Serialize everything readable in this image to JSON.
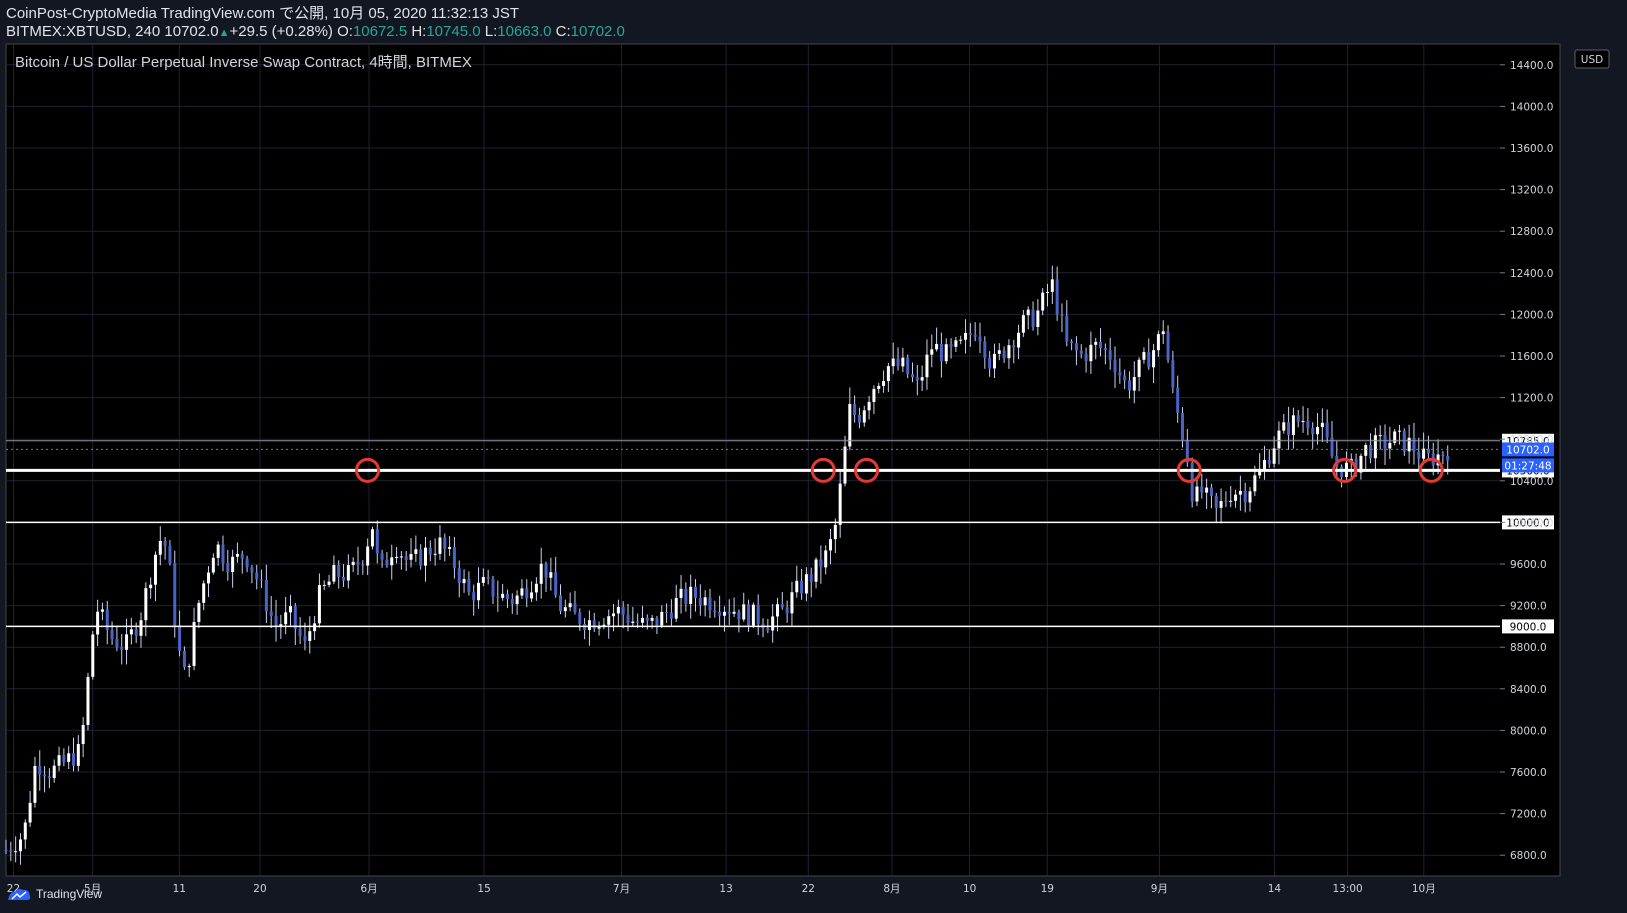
{
  "header": {
    "publish_line": "CoinPost-CryptoMedia TradingView.com で公開, 10月 05, 2020 11:32:13 JST",
    "symbol": "BITMEX:XBTUSD, 240",
    "last": "10702.0",
    "change": "+29.5 (+0.28%)",
    "o_label": "O:",
    "o": "10672.5",
    "h_label": "H:",
    "h": "10745.0",
    "l_label": "L:",
    "l": "10663.0",
    "c_label": "C:",
    "c": "10702.0"
  },
  "footer": {
    "brand": "TradingView"
  },
  "colors": {
    "background": "#000000",
    "grid": "#2a2e3f",
    "candle": "#ffffff",
    "accent": "#2962ff",
    "circle": "#e53935"
  },
  "chart_data": {
    "type": "candlestick",
    "title": "Bitcoin / US Dollar Perpetual Inverse Swap Contract, 4時間, BITMEX",
    "currency_label": "USD",
    "ylim": [
      6600,
      14600
    ],
    "y_ticks": [
      6800,
      7200,
      7600,
      8000,
      8400,
      8800,
      9200,
      9600,
      10000,
      10400,
      10800,
      11200,
      11600,
      12000,
      12400,
      12800,
      13200,
      13600,
      14000,
      14400
    ],
    "y_tick_labels": [
      "6800.0",
      "7200.0",
      "7600.0",
      "8000.0",
      "8400.0",
      "8800.0",
      "9200.0",
      "9600.0",
      "10000.0",
      "10400.0",
      "10800.0",
      "11200.0",
      "11600.0",
      "12000.0",
      "12400.0",
      "12800.0",
      "13200.0",
      "13600.0",
      "14000.0",
      "14400.0"
    ],
    "x_labels": [
      "22",
      "5月",
      "11",
      "20",
      "6月",
      "15",
      "7月",
      "13",
      "22",
      "8月",
      "10",
      "19",
      "9月",
      "14",
      "13:00",
      "10月"
    ],
    "x_label_pos": [
      0.005,
      0.058,
      0.116,
      0.17,
      0.243,
      0.32,
      0.412,
      0.482,
      0.537,
      0.593,
      0.645,
      0.697,
      0.772,
      0.849,
      0.898,
      0.949
    ],
    "horizontal_lines": [
      {
        "price": 9000,
        "label": "9000.0",
        "style": "solid"
      },
      {
        "price": 10000,
        "label": "10000.0",
        "style": "solid"
      },
      {
        "price": 10500,
        "label": "10500.0",
        "style": "thick"
      },
      {
        "price": 10785,
        "label": "10785.0",
        "style": "thin"
      },
      {
        "price": 10702,
        "label": "10702.0",
        "style": "dotted"
      }
    ],
    "last_price_label": "10702.0",
    "countdown_label": "01:27:48",
    "touch_points": [
      {
        "x_pos": 0.242,
        "price": 10500
      },
      {
        "x_pos": 0.547,
        "price": 10500
      },
      {
        "x_pos": 0.576,
        "price": 10500
      },
      {
        "x_pos": 0.792,
        "price": 10500
      },
      {
        "x_pos": 0.896,
        "price": 10500
      },
      {
        "x_pos": 0.954,
        "price": 10500
      }
    ],
    "price_path": [
      [
        0.0,
        6850
      ],
      [
        0.012,
        7000
      ],
      [
        0.02,
        7700
      ],
      [
        0.03,
        7600
      ],
      [
        0.045,
        7750
      ],
      [
        0.05,
        7800
      ],
      [
        0.055,
        8500
      ],
      [
        0.06,
        9200
      ],
      [
        0.07,
        8900
      ],
      [
        0.08,
        8800
      ],
      [
        0.09,
        9100
      ],
      [
        0.1,
        9700
      ],
      [
        0.105,
        9900
      ],
      [
        0.11,
        9500
      ],
      [
        0.115,
        8800
      ],
      [
        0.12,
        8500
      ],
      [
        0.13,
        9300
      ],
      [
        0.14,
        9800
      ],
      [
        0.15,
        9600
      ],
      [
        0.16,
        9700
      ],
      [
        0.17,
        9400
      ],
      [
        0.18,
        9000
      ],
      [
        0.19,
        9100
      ],
      [
        0.2,
        8800
      ],
      [
        0.21,
        9300
      ],
      [
        0.22,
        9500
      ],
      [
        0.23,
        9500
      ],
      [
        0.24,
        9700
      ],
      [
        0.245,
        10000
      ],
      [
        0.25,
        9500
      ],
      [
        0.26,
        9800
      ],
      [
        0.27,
        9600
      ],
      [
        0.28,
        9700
      ],
      [
        0.29,
        9800
      ],
      [
        0.3,
        9600
      ],
      [
        0.31,
        9300
      ],
      [
        0.32,
        9400
      ],
      [
        0.33,
        9300
      ],
      [
        0.34,
        9250
      ],
      [
        0.35,
        9400
      ],
      [
        0.36,
        9600
      ],
      [
        0.37,
        9200
      ],
      [
        0.38,
        9100
      ],
      [
        0.39,
        9050
      ],
      [
        0.4,
        9100
      ],
      [
        0.41,
        9150
      ],
      [
        0.42,
        9050
      ],
      [
        0.43,
        9000
      ],
      [
        0.44,
        9100
      ],
      [
        0.45,
        9250
      ],
      [
        0.46,
        9300
      ],
      [
        0.47,
        9250
      ],
      [
        0.48,
        9200
      ],
      [
        0.49,
        9150
      ],
      [
        0.5,
        9100
      ],
      [
        0.51,
        9050
      ],
      [
        0.52,
        9150
      ],
      [
        0.53,
        9350
      ],
      [
        0.54,
        9500
      ],
      [
        0.55,
        9700
      ],
      [
        0.555,
        9950
      ],
      [
        0.56,
        10500
      ],
      [
        0.565,
        11100
      ],
      [
        0.57,
        11000
      ],
      [
        0.58,
        11300
      ],
      [
        0.59,
        11500
      ],
      [
        0.6,
        11500
      ],
      [
        0.61,
        11300
      ],
      [
        0.62,
        11700
      ],
      [
        0.63,
        11600
      ],
      [
        0.64,
        11700
      ],
      [
        0.65,
        11900
      ],
      [
        0.66,
        11500
      ],
      [
        0.67,
        11700
      ],
      [
        0.68,
        11900
      ],
      [
        0.69,
        12000
      ],
      [
        0.7,
        12300
      ],
      [
        0.71,
        11700
      ],
      [
        0.72,
        11600
      ],
      [
        0.73,
        11700
      ],
      [
        0.74,
        11600
      ],
      [
        0.75,
        11300
      ],
      [
        0.76,
        11500
      ],
      [
        0.77,
        11700
      ],
      [
        0.775,
        11900
      ],
      [
        0.78,
        11300
      ],
      [
        0.79,
        10700
      ],
      [
        0.795,
        10200
      ],
      [
        0.8,
        10300
      ],
      [
        0.81,
        10100
      ],
      [
        0.82,
        10300
      ],
      [
        0.83,
        10300
      ],
      [
        0.84,
        10500
      ],
      [
        0.85,
        10800
      ],
      [
        0.86,
        10950
      ],
      [
        0.87,
        11000
      ],
      [
        0.88,
        10900
      ],
      [
        0.89,
        10550
      ],
      [
        0.9,
        10500
      ],
      [
        0.91,
        10700
      ],
      [
        0.92,
        10750
      ],
      [
        0.93,
        10800
      ],
      [
        0.94,
        10750
      ],
      [
        0.95,
        10600
      ],
      [
        0.96,
        10650
      ],
      [
        0.965,
        10702
      ]
    ]
  }
}
